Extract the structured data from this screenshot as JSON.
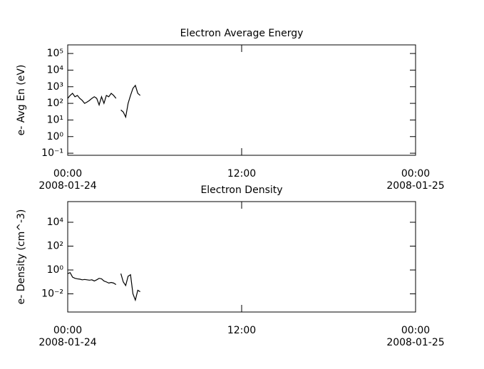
{
  "chart_data": [
    {
      "type": "line",
      "title": "Electron Average Energy",
      "y_label": "e- Avg En (eV)",
      "yscale": "log",
      "ylim": [
        0.075,
        330000
      ],
      "yticks": [
        {
          "value": 0.1,
          "label": "10⁻¹"
        },
        {
          "value": 1,
          "label": "10⁰"
        },
        {
          "value": 10,
          "label": "10¹"
        },
        {
          "value": 100,
          "label": "10²"
        },
        {
          "value": 1000,
          "label": "10³"
        },
        {
          "value": 10000,
          "label": "10⁴"
        },
        {
          "value": 100000,
          "label": "10⁵"
        }
      ],
      "xlim": [
        "2008-01-24 00:00",
        "2008-01-25 00:00"
      ],
      "xticks": [
        {
          "value": "2008-01-24 00:00",
          "label": "00:00",
          "date": "2008-01-24"
        },
        {
          "value": "2008-01-24 12:00",
          "label": "12:00"
        },
        {
          "value": "2008-01-25 00:00",
          "label": "00:00",
          "date": "2008-01-25"
        }
      ],
      "x": [
        "2008-01-24 00:00",
        "2008-01-24 00:10",
        "2008-01-24 00:20",
        "2008-01-24 00:30",
        "2008-01-24 00:40",
        "2008-01-24 00:50",
        "2008-01-24 01:00",
        "2008-01-24 01:10",
        "2008-01-24 01:20",
        "2008-01-24 01:30",
        "2008-01-24 01:40",
        "2008-01-24 01:50",
        "2008-01-24 02:00",
        "2008-01-24 02:10",
        "2008-01-24 02:20",
        "2008-01-24 02:30",
        "2008-01-24 02:40",
        "2008-01-24 02:50",
        "2008-01-24 03:00",
        "2008-01-24 03:10",
        "2008-01-24 03:20",
        "2008-01-24 03:30",
        "2008-01-24 03:40",
        "2008-01-24 03:50",
        "2008-01-24 04:00",
        "2008-01-24 04:10",
        "2008-01-24 04:20",
        "2008-01-24 04:30",
        "2008-01-24 04:40",
        "2008-01-24 04:50",
        "2008-01-24 05:00"
      ],
      "series": [
        {
          "color": "#000000",
          "values": [
            200,
            300,
            400,
            250,
            300,
            200,
            150,
            100,
            120,
            150,
            200,
            250,
            200,
            80,
            250,
            100,
            300,
            250,
            400,
            300,
            200,
            null,
            40,
            30,
            15,
            100,
            300,
            800,
            1200,
            400,
            300
          ]
        }
      ]
    },
    {
      "type": "line",
      "title": "Electron Density",
      "y_label": "e- Density (cm^-3)",
      "yscale": "log",
      "ylim": [
        0.0003,
        540000
      ],
      "yticks": [
        {
          "value": 0.01,
          "label": "10⁻²"
        },
        {
          "value": 1,
          "label": "10⁰"
        },
        {
          "value": 100,
          "label": "10²"
        },
        {
          "value": 10000,
          "label": "10⁴"
        }
      ],
      "xlim": [
        "2008-01-24 00:00",
        "2008-01-25 00:00"
      ],
      "xticks": [
        {
          "value": "2008-01-24 00:00",
          "label": "00:00",
          "date": "2008-01-24"
        },
        {
          "value": "2008-01-24 12:00",
          "label": "12:00"
        },
        {
          "value": "2008-01-25 00:00",
          "label": "00:00",
          "date": "2008-01-25"
        }
      ],
      "x": [
        "2008-01-24 00:00",
        "2008-01-24 00:10",
        "2008-01-24 00:20",
        "2008-01-24 00:30",
        "2008-01-24 00:40",
        "2008-01-24 00:50",
        "2008-01-24 01:00",
        "2008-01-24 01:10",
        "2008-01-24 01:20",
        "2008-01-24 01:30",
        "2008-01-24 01:40",
        "2008-01-24 01:50",
        "2008-01-24 02:00",
        "2008-01-24 02:10",
        "2008-01-24 02:20",
        "2008-01-24 02:30",
        "2008-01-24 02:40",
        "2008-01-24 02:50",
        "2008-01-24 03:00",
        "2008-01-24 03:10",
        "2008-01-24 03:20",
        "2008-01-24 03:30",
        "2008-01-24 03:40",
        "2008-01-24 03:50",
        "2008-01-24 04:00",
        "2008-01-24 04:10",
        "2008-01-24 04:20",
        "2008-01-24 04:30",
        "2008-01-24 04:40",
        "2008-01-24 04:50",
        "2008-01-24 05:00"
      ],
      "series": [
        {
          "color": "#000000",
          "values": [
            0.5,
            0.6,
            0.25,
            0.2,
            0.18,
            0.17,
            0.15,
            0.16,
            0.15,
            0.14,
            0.15,
            0.12,
            0.15,
            0.2,
            0.18,
            0.12,
            0.1,
            0.08,
            0.09,
            0.08,
            0.06,
            null,
            0.5,
            0.1,
            0.05,
            0.3,
            0.4,
            0.01,
            0.003,
            0.02,
            0.015
          ]
        }
      ]
    }
  ]
}
